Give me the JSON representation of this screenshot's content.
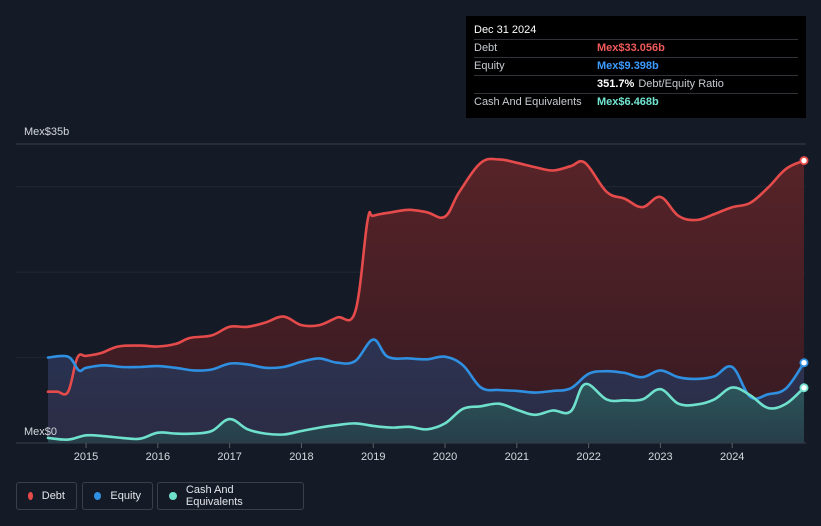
{
  "tooltip": {
    "date": "Dec 31 2024",
    "rows": [
      {
        "label": "Debt",
        "value": "Mex$33.056b"
      },
      {
        "label": "Equity",
        "value": "Mex$9.398b"
      },
      {
        "label": "Cash And Equivalents",
        "value": "Mex$6.468b"
      }
    ],
    "ratio_value": "351.7%",
    "ratio_label": "Debt/Equity Ratio"
  },
  "legend": [
    {
      "label": "Debt",
      "color": "#e64b4b"
    },
    {
      "label": "Equity",
      "color": "#2f8fe0"
    },
    {
      "label": "Cash And Equivalents",
      "color": "#6ee0cc"
    }
  ],
  "chart_data": {
    "type": "area",
    "title": "",
    "xlabel": "",
    "ylabel": "",
    "y_unit": "billions MXN",
    "ylim": [
      0,
      35
    ],
    "y_tick_labels": [
      {
        "value": 35,
        "label": "Mex$35b"
      },
      {
        "value": 0,
        "label": "Mex$0"
      }
    ],
    "gridlines": [
      35,
      30,
      20,
      10
    ],
    "xlim": [
      2014.47,
      2025.0
    ],
    "x_ticks": [
      {
        "value": 2015,
        "label": "2015"
      },
      {
        "value": 2016,
        "label": "2016"
      },
      {
        "value": 2017,
        "label": "2017"
      },
      {
        "value": 2018,
        "label": "2018"
      },
      {
        "value": 2019,
        "label": "2019"
      },
      {
        "value": 2020,
        "label": "2020"
      },
      {
        "value": 2021,
        "label": "2021"
      },
      {
        "value": 2022,
        "label": "2022"
      },
      {
        "value": 2023,
        "label": "2023"
      },
      {
        "value": 2024,
        "label": "2024"
      }
    ],
    "series": [
      {
        "name": "Debt",
        "color": "#e64b4b",
        "points": [
          [
            2014.47,
            6
          ],
          [
            2014.6,
            6
          ],
          [
            2014.75,
            6
          ],
          [
            2014.88,
            10
          ],
          [
            2015.0,
            10.2
          ],
          [
            2015.2,
            10.5
          ],
          [
            2015.45,
            11.3
          ],
          [
            2015.75,
            11.4
          ],
          [
            2016.0,
            11.3
          ],
          [
            2016.25,
            11.6
          ],
          [
            2016.45,
            12.3
          ],
          [
            2016.75,
            12.6
          ],
          [
            2017.0,
            13.6
          ],
          [
            2017.25,
            13.6
          ],
          [
            2017.5,
            14.1
          ],
          [
            2017.75,
            14.8
          ],
          [
            2018.0,
            13.8
          ],
          [
            2018.25,
            13.8
          ],
          [
            2018.5,
            14.7
          ],
          [
            2018.75,
            15.4
          ],
          [
            2018.92,
            26
          ],
          [
            2019.0,
            26.6
          ],
          [
            2019.25,
            27
          ],
          [
            2019.5,
            27.3
          ],
          [
            2019.75,
            27
          ],
          [
            2020.0,
            26.5
          ],
          [
            2020.2,
            29.4
          ],
          [
            2020.5,
            32.8
          ],
          [
            2020.75,
            33.2
          ],
          [
            2021.0,
            32.8
          ],
          [
            2021.25,
            32.3
          ],
          [
            2021.5,
            31.9
          ],
          [
            2021.75,
            32.4
          ],
          [
            2021.95,
            32.8
          ],
          [
            2022.25,
            29.4
          ],
          [
            2022.5,
            28.6
          ],
          [
            2022.75,
            27.6
          ],
          [
            2023.0,
            28.8
          ],
          [
            2023.25,
            26.6
          ],
          [
            2023.5,
            26.1
          ],
          [
            2023.75,
            26.8
          ],
          [
            2024.0,
            27.6
          ],
          [
            2024.25,
            28.1
          ],
          [
            2024.5,
            29.9
          ],
          [
            2024.75,
            32.1
          ],
          [
            2025.0,
            33.056
          ]
        ]
      },
      {
        "name": "Equity",
        "color": "#2f8fe0",
        "points": [
          [
            2014.47,
            10
          ],
          [
            2014.75,
            10.1
          ],
          [
            2014.9,
            8.5
          ],
          [
            2015.0,
            8.8
          ],
          [
            2015.25,
            9.1
          ],
          [
            2015.5,
            8.9
          ],
          [
            2015.75,
            8.9
          ],
          [
            2016.0,
            9.0
          ],
          [
            2016.25,
            8.8
          ],
          [
            2016.5,
            8.5
          ],
          [
            2016.75,
            8.6
          ],
          [
            2017.0,
            9.3
          ],
          [
            2017.25,
            9.2
          ],
          [
            2017.5,
            8.8
          ],
          [
            2017.75,
            8.9
          ],
          [
            2018.0,
            9.5
          ],
          [
            2018.25,
            9.9
          ],
          [
            2018.5,
            9.4
          ],
          [
            2018.75,
            9.6
          ],
          [
            2019.0,
            12.1
          ],
          [
            2019.2,
            10.1
          ],
          [
            2019.5,
            9.9
          ],
          [
            2019.75,
            9.8
          ],
          [
            2020.0,
            10.1
          ],
          [
            2020.25,
            9.1
          ],
          [
            2020.5,
            6.5
          ],
          [
            2020.75,
            6.2
          ],
          [
            2021.0,
            6.1
          ],
          [
            2021.25,
            5.9
          ],
          [
            2021.5,
            6.1
          ],
          [
            2021.75,
            6.4
          ],
          [
            2022.0,
            8.1
          ],
          [
            2022.25,
            8.4
          ],
          [
            2022.5,
            8.2
          ],
          [
            2022.75,
            7.7
          ],
          [
            2023.0,
            8.5
          ],
          [
            2023.25,
            7.7
          ],
          [
            2023.5,
            7.5
          ],
          [
            2023.75,
            7.8
          ],
          [
            2024.0,
            8.9
          ],
          [
            2024.25,
            5.4
          ],
          [
            2024.5,
            5.7
          ],
          [
            2024.75,
            6.4
          ],
          [
            2025.0,
            9.398
          ]
        ]
      },
      {
        "name": "Cash And Equivalents",
        "color": "#6ee0cc",
        "points": [
          [
            2014.47,
            0.6
          ],
          [
            2014.75,
            0.4
          ],
          [
            2015.0,
            0.9
          ],
          [
            2015.25,
            0.8
          ],
          [
            2015.5,
            0.6
          ],
          [
            2015.75,
            0.5
          ],
          [
            2016.0,
            1.2
          ],
          [
            2016.25,
            1.1
          ],
          [
            2016.5,
            1.1
          ],
          [
            2016.75,
            1.4
          ],
          [
            2017.0,
            2.8
          ],
          [
            2017.25,
            1.6
          ],
          [
            2017.5,
            1.1
          ],
          [
            2017.75,
            1.0
          ],
          [
            2018.0,
            1.4
          ],
          [
            2018.25,
            1.8
          ],
          [
            2018.5,
            2.1
          ],
          [
            2018.75,
            2.3
          ],
          [
            2019.0,
            2.0
          ],
          [
            2019.25,
            1.8
          ],
          [
            2019.5,
            1.9
          ],
          [
            2019.75,
            1.6
          ],
          [
            2020.0,
            2.3
          ],
          [
            2020.25,
            4.0
          ],
          [
            2020.5,
            4.3
          ],
          [
            2020.75,
            4.6
          ],
          [
            2021.0,
            3.9
          ],
          [
            2021.25,
            3.3
          ],
          [
            2021.5,
            3.8
          ],
          [
            2021.75,
            3.7
          ],
          [
            2021.95,
            6.9
          ],
          [
            2022.25,
            5.1
          ],
          [
            2022.5,
            5.0
          ],
          [
            2022.75,
            5.1
          ],
          [
            2023.0,
            6.3
          ],
          [
            2023.25,
            4.6
          ],
          [
            2023.5,
            4.5
          ],
          [
            2023.75,
            5.1
          ],
          [
            2024.0,
            6.5
          ],
          [
            2024.25,
            5.6
          ],
          [
            2024.5,
            4.1
          ],
          [
            2024.75,
            4.6
          ],
          [
            2025.0,
            6.468
          ]
        ]
      }
    ]
  }
}
